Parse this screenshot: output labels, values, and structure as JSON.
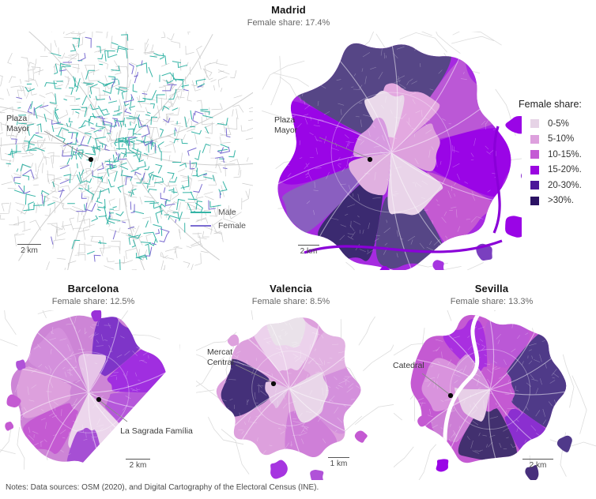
{
  "header": {
    "title": "Madrid",
    "subtitle": "Female share: 17.4%"
  },
  "street_map": {
    "annotation": "Plaza Mayor",
    "scale_label": "2 km",
    "legend": {
      "male_label": "Male",
      "female_label": "Female"
    }
  },
  "madrid_map": {
    "annotation": "Plaza Mayor",
    "scale_label": "2 km"
  },
  "share_legend": {
    "title": "Female share:",
    "items": [
      {
        "label": "0-5%",
        "color": "#e6d3e6"
      },
      {
        "label": "5-10%",
        "color": "#dda0dd"
      },
      {
        "label": "10-15%.",
        "color": "#c45ad4"
      },
      {
        "label": "15-20%.",
        "color": "#9a05e0"
      },
      {
        "label": "20-30%.",
        "color": "#4c1699"
      },
      {
        "label": ">30%.",
        "color": "#2b1263"
      }
    ]
  },
  "cities": [
    {
      "name": "Barcelona",
      "subtitle": "Female share: 12.5%",
      "annotation": "La Sagrada Família",
      "scale_label": "2 km"
    },
    {
      "name": "Valencia",
      "subtitle": "Female share: 8.5%",
      "annotation": "Mercat Central",
      "scale_label": "1 km"
    },
    {
      "name": "Sevilla",
      "subtitle": "Female share: 13.3%",
      "annotation": "Catedral",
      "scale_label": "2 km"
    }
  ],
  "notes": "Notes: Data sources: OSM (2020), and Digital Cartography of the Electoral Census (INE).",
  "colors": {
    "male_line": "#35b4a6",
    "female_line": "#7a6cd1"
  }
}
